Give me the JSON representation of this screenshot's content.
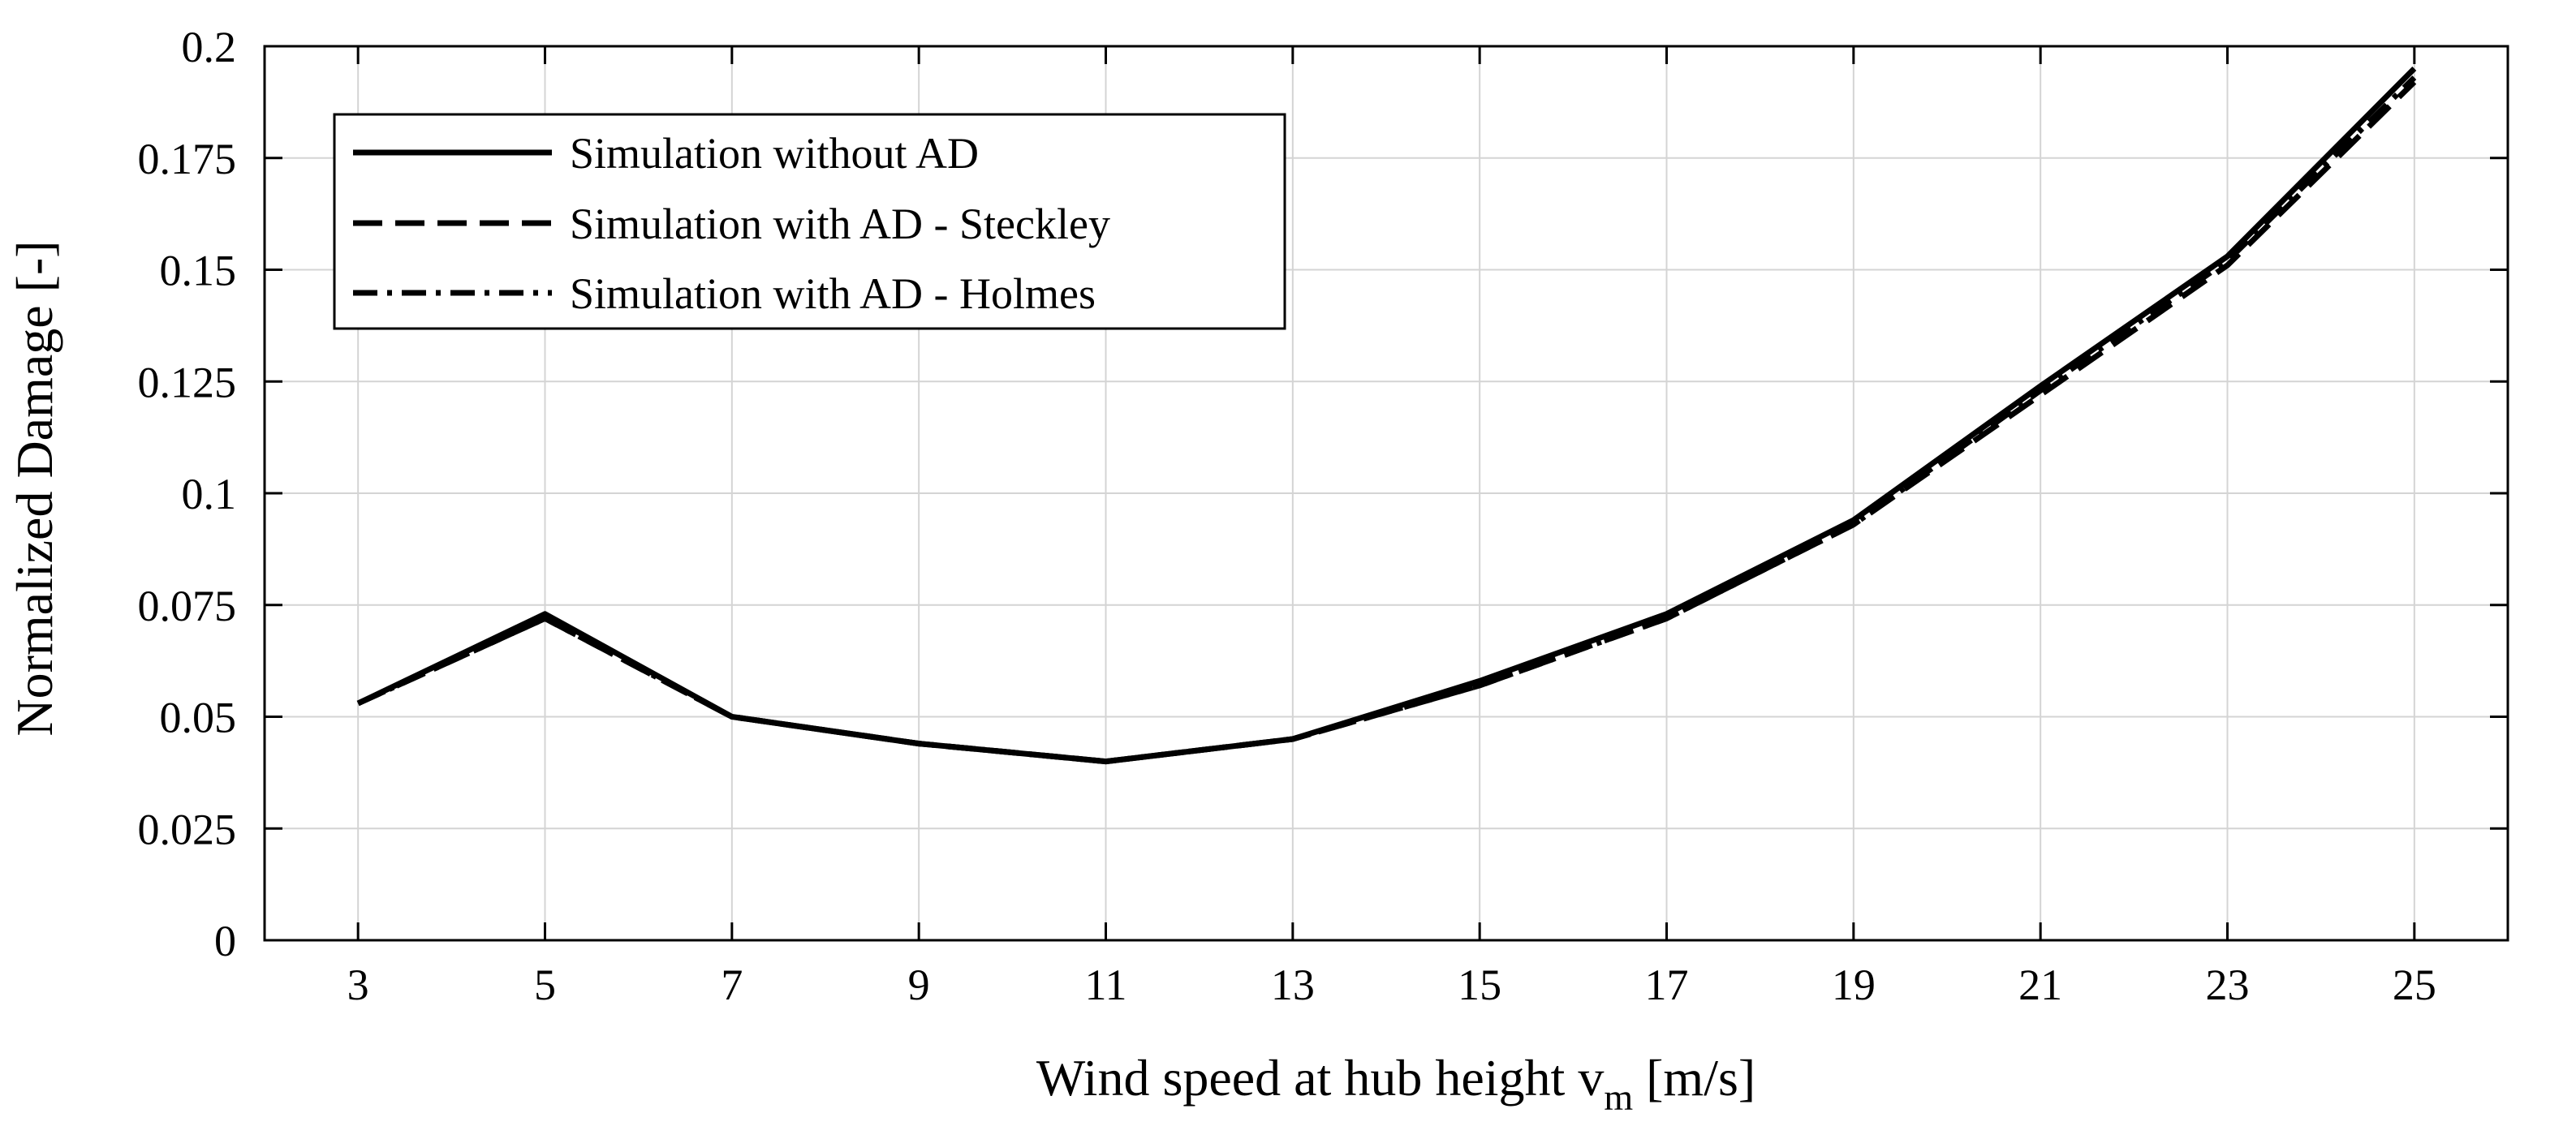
{
  "chart_data": {
    "type": "line",
    "title": "",
    "xlabel": "Wind speed at hub height v",
    "xlabel_sub": "m",
    "xlabel_unit": " [m/s]",
    "ylabel": "Normalized Damage [-]",
    "xlim": [
      2,
      26
    ],
    "ylim": [
      0,
      0.2
    ],
    "x_ticks": [
      3,
      5,
      7,
      9,
      11,
      13,
      15,
      17,
      19,
      21,
      23,
      25
    ],
    "y_ticks": [
      0,
      0.025,
      0.05,
      0.075,
      0.1,
      0.125,
      0.15,
      0.175,
      0.2
    ],
    "x_tick_labels": [
      "3",
      "5",
      "7",
      "9",
      "11",
      "13",
      "15",
      "17",
      "19",
      "21",
      "23",
      "25"
    ],
    "y_tick_labels": [
      "0",
      "0.025",
      "0.05",
      "0.075",
      "0.1",
      "0.125",
      "0.15",
      "0.175",
      "0.2"
    ],
    "grid": true,
    "legend_position": "top-left",
    "x": [
      3,
      5,
      7,
      9,
      11,
      13,
      15,
      17,
      19,
      21,
      23,
      25
    ],
    "series": [
      {
        "name": "Simulation without AD",
        "style": "solid",
        "color": "#000000",
        "values": [
          0.053,
          0.073,
          0.05,
          0.044,
          0.04,
          0.045,
          0.058,
          0.073,
          0.094,
          0.124,
          0.153,
          0.195
        ]
      },
      {
        "name": "Simulation with AD - Steckley",
        "style": "dashed",
        "color": "#000000",
        "values": [
          0.053,
          0.072,
          0.05,
          0.044,
          0.04,
          0.045,
          0.057,
          0.072,
          0.093,
          0.122,
          0.151,
          0.192
        ]
      },
      {
        "name": "Simulation with AD - Holmes",
        "style": "dashdot",
        "color": "#000000",
        "values": [
          0.053,
          0.072,
          0.05,
          0.044,
          0.04,
          0.045,
          0.057,
          0.072,
          0.093,
          0.123,
          0.152,
          0.193
        ]
      }
    ]
  }
}
